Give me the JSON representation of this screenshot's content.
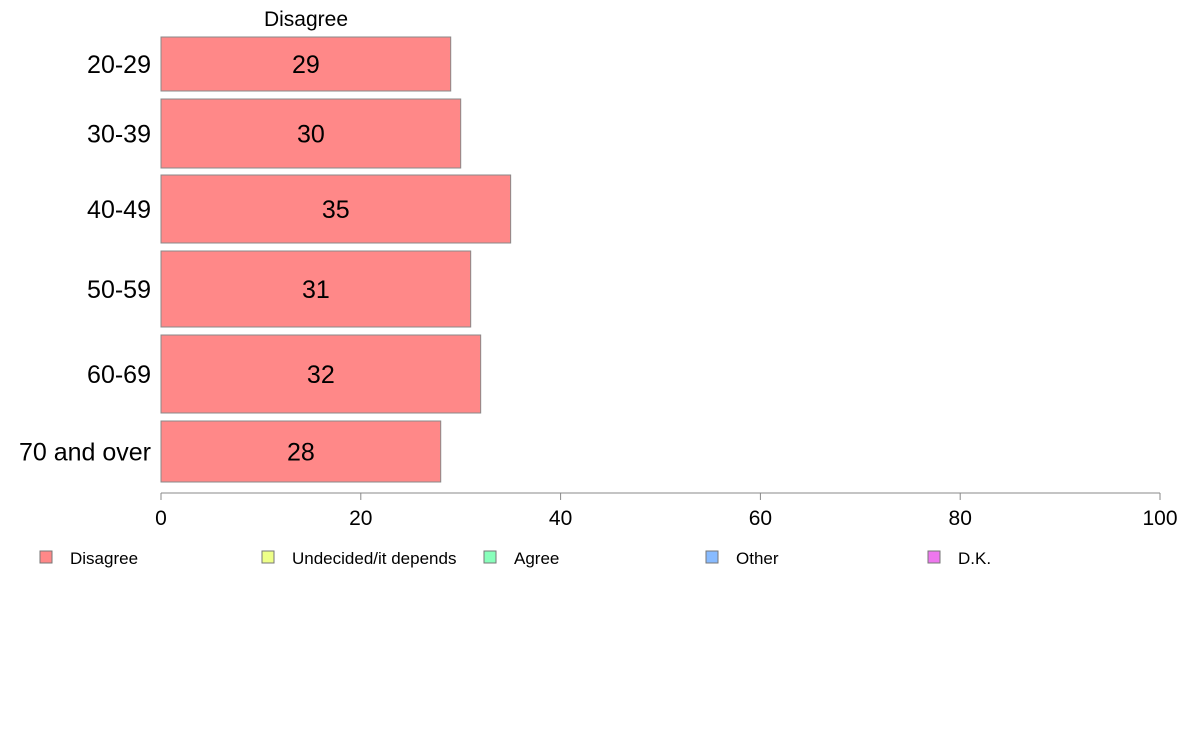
{
  "chart_data": {
    "type": "bar",
    "orientation": "horizontal",
    "title": "",
    "column_header": "Disagree",
    "categories": [
      "20-29",
      "30-39",
      "40-49",
      "50-59",
      "60-69",
      "70 and over"
    ],
    "series": [
      {
        "name": "Disagree",
        "values": [
          29,
          30,
          35,
          31,
          32,
          28
        ]
      }
    ],
    "data_labels": [
      "29",
      "30",
      "35",
      "31",
      "32",
      "28"
    ],
    "xlim": [
      0,
      100
    ],
    "x_ticks": [
      0,
      20,
      40,
      60,
      80,
      100
    ],
    "grid": false,
    "legend": {
      "placement": "bottom",
      "items": [
        {
          "label": "Disagree",
          "color": "#ff8888"
        },
        {
          "label": "Undecided/it depends",
          "color": "#eeff88"
        },
        {
          "label": "Agree",
          "color": "#88ffbb"
        },
        {
          "label": "Other",
          "color": "#88bbff"
        },
        {
          "label": "D.K.",
          "color": "#ee77ee"
        }
      ]
    },
    "colors": {
      "bar": "#ff8888",
      "bar_stroke": "#888888",
      "axis": "#888888"
    }
  }
}
